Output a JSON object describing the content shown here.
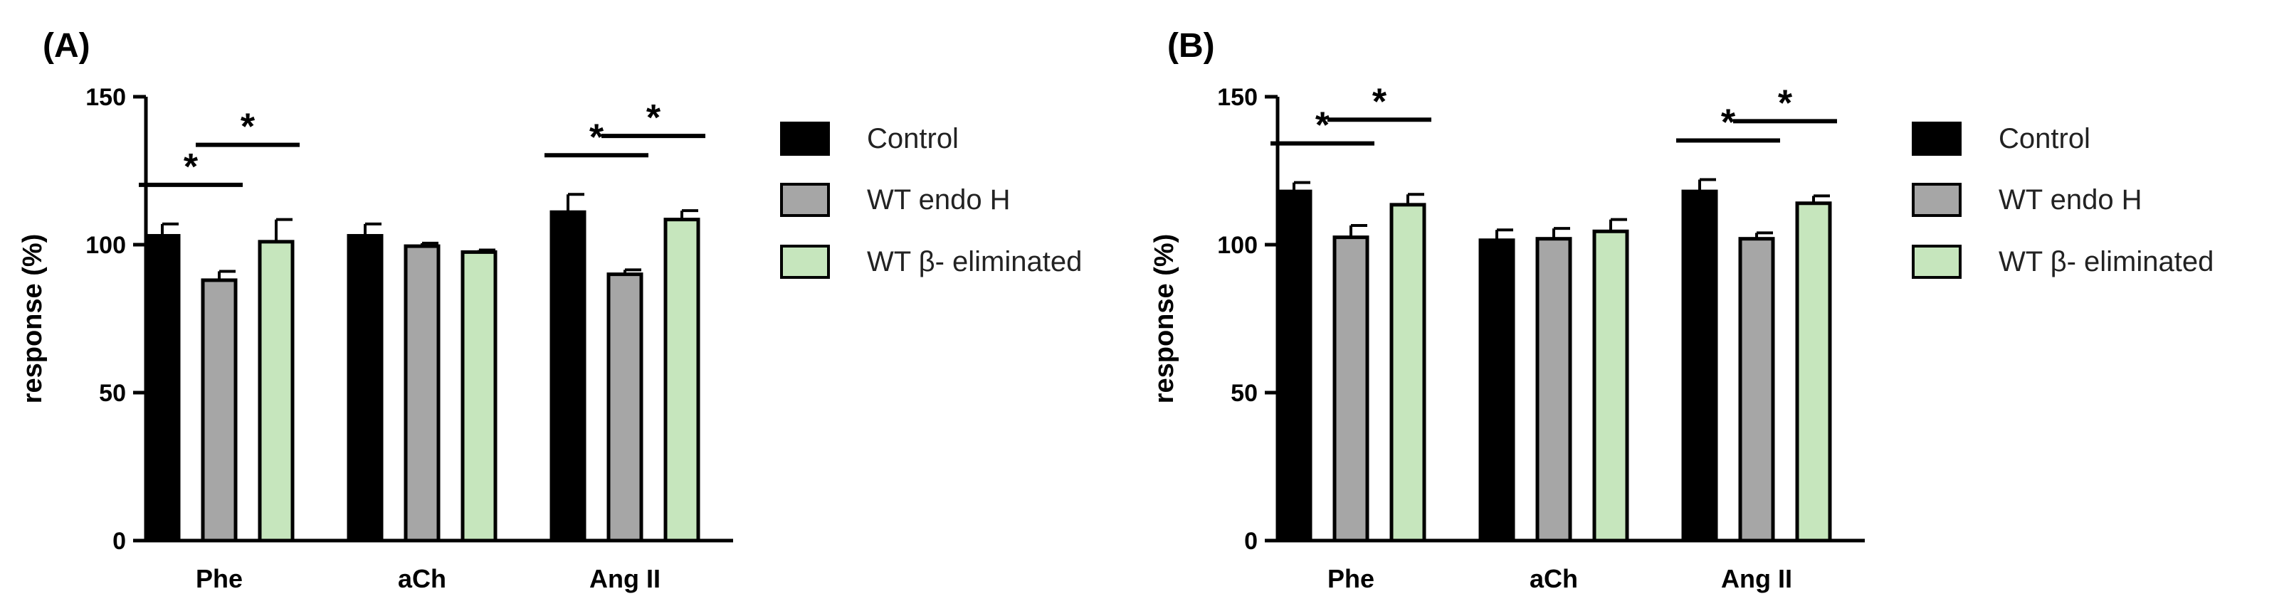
{
  "colors": {
    "control": "#000000",
    "endo": "#a6a6a6",
    "beta": "#c6e6bd",
    "stroke": "#000000"
  },
  "legend": [
    "Control",
    "WT endo H",
    "WT β- eliminated"
  ],
  "chart_data": [
    {
      "panel": "(A)",
      "type": "bar",
      "ylabel": "response (%)",
      "ylim": [
        0,
        150
      ],
      "yticks": [
        "0",
        "50",
        "100",
        "150"
      ],
      "categories": [
        "Phe",
        "aCh",
        "Ang II"
      ],
      "series": [
        {
          "name": "Control",
          "values": [
            103,
            103,
            111
          ],
          "errors": [
            4,
            4,
            6
          ]
        },
        {
          "name": "WT endo H",
          "values": [
            88,
            99.5,
            90
          ],
          "errors": [
            3,
            1,
            1.5
          ]
        },
        {
          "name": "WT β- eliminated",
          "values": [
            101,
            97.5,
            108.5
          ],
          "errors": [
            7.5,
            0.7,
            3
          ]
        }
      ],
      "significance": [
        {
          "category": 0,
          "from": 0,
          "to": 1,
          "label": "*"
        },
        {
          "category": 0,
          "from": 1,
          "to": 2,
          "label": "*"
        },
        {
          "category": 2,
          "from": 0,
          "to": 1,
          "label": "*"
        },
        {
          "category": 2,
          "from": 1,
          "to": 2,
          "label": "*"
        }
      ],
      "legend_position": "right"
    },
    {
      "panel": "(B)",
      "type": "bar",
      "ylabel": "response (%)",
      "ylim": [
        0,
        150
      ],
      "yticks": [
        "0",
        "50",
        "100",
        "150"
      ],
      "categories": [
        "Phe",
        "aCh",
        "Ang II"
      ],
      "series": [
        {
          "name": "Control",
          "values": [
            118,
            101.5,
            118
          ],
          "errors": [
            3,
            3.5,
            4
          ]
        },
        {
          "name": "WT endo H",
          "values": [
            102.5,
            102,
            102
          ],
          "errors": [
            4,
            3.5,
            2
          ]
        },
        {
          "name": "WT β- eliminated",
          "values": [
            113.5,
            104.5,
            114
          ],
          "errors": [
            3.5,
            4,
            2.5
          ]
        }
      ],
      "significance": [
        {
          "category": 0,
          "from": 0,
          "to": 1,
          "label": "*"
        },
        {
          "category": 0,
          "from": 1,
          "to": 2,
          "label": "*"
        },
        {
          "category": 2,
          "from": 0,
          "to": 1,
          "label": "*"
        },
        {
          "category": 2,
          "from": 1,
          "to": 2,
          "label": "*"
        }
      ],
      "legend_position": "right"
    }
  ]
}
